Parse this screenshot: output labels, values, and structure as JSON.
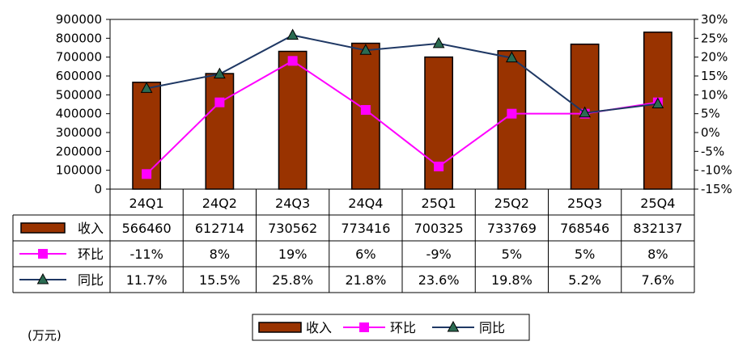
{
  "chart_data": {
    "type": "bar",
    "categories": [
      "24Q1",
      "24Q2",
      "24Q3",
      "24Q4",
      "25Q1",
      "25Q2",
      "25Q3",
      "25Q4"
    ],
    "series": [
      {
        "name": "收入",
        "type": "bar",
        "axis": "left",
        "values": [
          566460,
          612714,
          730562,
          773416,
          700325,
          733769,
          768546,
          832137
        ],
        "labels": [
          "566460",
          "612714",
          "730562",
          "773416",
          "700325",
          "733769",
          "768546",
          "832137"
        ]
      },
      {
        "name": "环比",
        "type": "line",
        "axis": "right",
        "marker": "square",
        "values": [
          -11,
          8,
          19,
          6,
          -9,
          5,
          5,
          8
        ],
        "labels": [
          "-11%",
          "8%",
          "19%",
          "6%",
          "-9%",
          "5%",
          "5%",
          "8%"
        ]
      },
      {
        "name": "同比",
        "type": "line",
        "axis": "right",
        "marker": "triangle",
        "values": [
          11.7,
          15.5,
          25.8,
          21.8,
          23.6,
          19.8,
          5.2,
          7.6
        ],
        "labels": [
          "11.7%",
          "15.5%",
          "25.8%",
          "21.8%",
          "23.6%",
          "19.8%",
          "5.2%",
          "7.6%"
        ]
      }
    ],
    "ylim_left": [
      0,
      900000
    ],
    "yticks_left": [
      "900000",
      "800000",
      "700000",
      "600000",
      "500000",
      "400000",
      "300000",
      "200000",
      "100000",
      "0"
    ],
    "ylim_right": [
      -15,
      30
    ],
    "yticks_right": [
      "30%",
      "25%",
      "20%",
      "15%",
      "10%",
      "5%",
      "0%",
      "-5%",
      "-10%",
      "-15%"
    ],
    "unit_label": "(万元)",
    "legend_position": "bottom",
    "colors": {
      "bar": "#993300",
      "hb": "#ff00ff",
      "tb": "#1f3864"
    }
  }
}
